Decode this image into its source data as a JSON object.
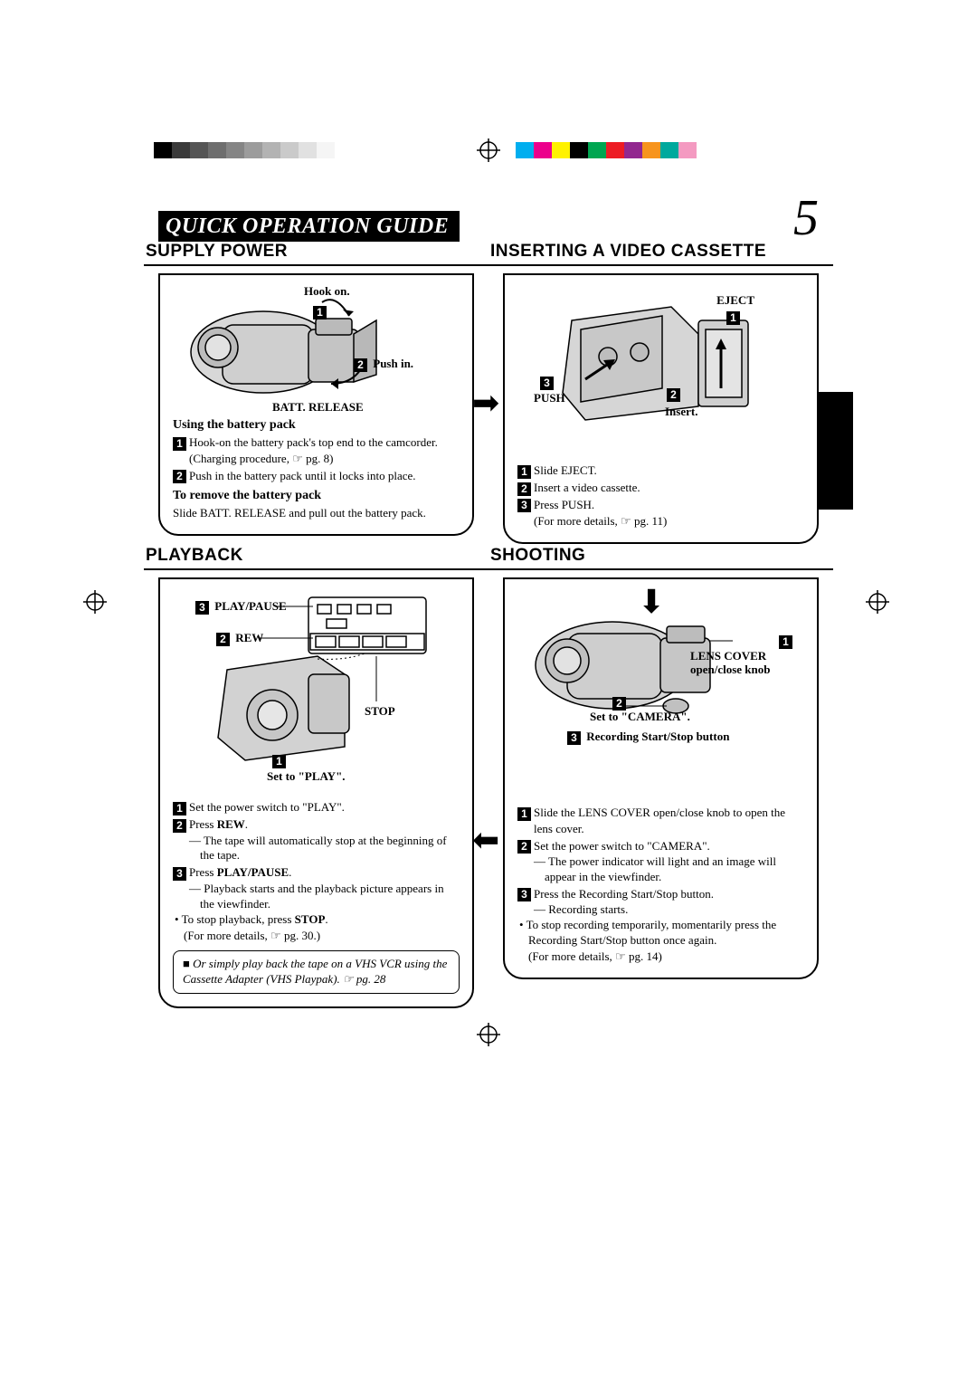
{
  "page_number": "5",
  "header_title": "QUICK OPERATION GUIDE",
  "color_strip": {
    "left": [
      "#000000",
      "#3a3a3a",
      "#555555",
      "#6e6e6e",
      "#858585",
      "#9c9c9c",
      "#b3b3b3",
      "#cacaca",
      "#e1e1e1",
      "#f5f5f5"
    ],
    "right": [
      "#00aeef",
      "#ec008c",
      "#fff200",
      "#000000",
      "#00a651",
      "#ed1c24",
      "#92278f",
      "#f7941d",
      "#00a99d",
      "#f49ac1"
    ]
  },
  "panels": {
    "supply_power": {
      "title": "SUPPLY POWER",
      "labels": {
        "hook_on": "Hook on.",
        "push_in": "Push in.",
        "batt_release": "BATT. RELEASE"
      },
      "sub1": "Using the battery pack",
      "step1": "Hook-on the battery pack's top end to the camcorder. (Charging procedure, ☞ pg. 8)",
      "step2": "Push in the battery pack until it locks into place.",
      "sub2": "To remove the battery pack",
      "remove_text": "Slide BATT. RELEASE and pull out the battery pack."
    },
    "inserting": {
      "title": "INSERTING A VIDEO CASSETTE",
      "labels": {
        "eject": "EJECT",
        "push": "PUSH",
        "insert": "Insert."
      },
      "step1": "Slide EJECT.",
      "step2": "Insert a video cassette.",
      "step3": "Press PUSH.",
      "more": "(For more details, ☞ pg. 11)"
    },
    "playback": {
      "title": "PLAYBACK",
      "labels": {
        "play_pause": "PLAY/PAUSE",
        "rew": "REW",
        "stop": "STOP",
        "set_play": "Set to \"PLAY\"."
      },
      "step1": "Set the power switch to \"PLAY\".",
      "step2_a": "Press ",
      "step2_b": "REW",
      "step2_c": ".",
      "sub2": "— The tape will automatically stop at the beginning of the tape.",
      "step3_a": "Press ",
      "step3_b": "PLAY/PAUSE",
      "step3_c": ".",
      "sub3": "— Playback starts and the playback picture appears in the viewfinder.",
      "bullet_a": "• To stop playback, press ",
      "bullet_b": "STOP",
      "bullet_c": ".",
      "more": "(For more details, ☞ pg. 30.)",
      "note": "■ Or simply play back the tape on a VHS VCR using the Cassette Adapter (VHS Playpak). ☞ pg. 28"
    },
    "shooting": {
      "title": "SHOOTING",
      "labels": {
        "lens_cover": "LENS COVER open/close knob",
        "set_camera": "Set to \"CAMERA\".",
        "rec_btn": "Recording Start/Stop button"
      },
      "step1": "Slide the LENS COVER open/close knob to open the lens cover.",
      "step2": "Set the power switch to \"CAMERA\".",
      "sub2": "— The power indicator will light and an image will appear in the viewfinder.",
      "step3": "Press the Recording Start/Stop button.",
      "sub3": "— Recording starts.",
      "bullet": "• To stop recording temporarily, momentarily press the Recording Start/Stop button once again.",
      "more": "(For more details, ☞ pg. 14)"
    }
  }
}
